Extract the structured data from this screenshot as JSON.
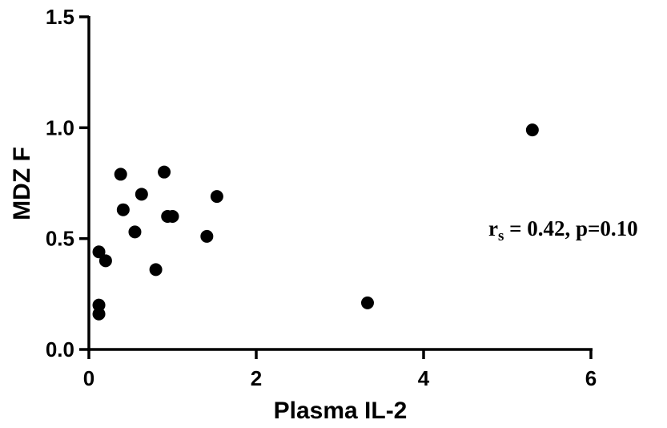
{
  "chart_data": {
    "type": "scatter",
    "xlabel": "Plasma IL-2",
    "ylabel": "MDZ F",
    "xlim": [
      0,
      6
    ],
    "ylim": [
      0,
      1.5
    ],
    "x_ticks": [
      "0",
      "2",
      "4",
      "6"
    ],
    "y_ticks": [
      "0.0",
      "0.5",
      "1.0",
      "1.5"
    ],
    "grid": false,
    "points": [
      {
        "x": 0.12,
        "y": 0.44
      },
      {
        "x": 0.12,
        "y": 0.2
      },
      {
        "x": 0.12,
        "y": 0.16
      },
      {
        "x": 0.2,
        "y": 0.4
      },
      {
        "x": 0.38,
        "y": 0.79
      },
      {
        "x": 0.41,
        "y": 0.63
      },
      {
        "x": 0.55,
        "y": 0.53
      },
      {
        "x": 0.63,
        "y": 0.7
      },
      {
        "x": 0.8,
        "y": 0.36
      },
      {
        "x": 0.9,
        "y": 0.8
      },
      {
        "x": 0.94,
        "y": 0.6
      },
      {
        "x": 1.0,
        "y": 0.6
      },
      {
        "x": 1.41,
        "y": 0.51
      },
      {
        "x": 1.53,
        "y": 0.69
      },
      {
        "x": 3.33,
        "y": 0.21
      },
      {
        "x": 5.3,
        "y": 0.99
      }
    ],
    "annotation": {
      "prefix": "r",
      "subscript": "s",
      "text": " = 0.42, p=0.10"
    }
  }
}
